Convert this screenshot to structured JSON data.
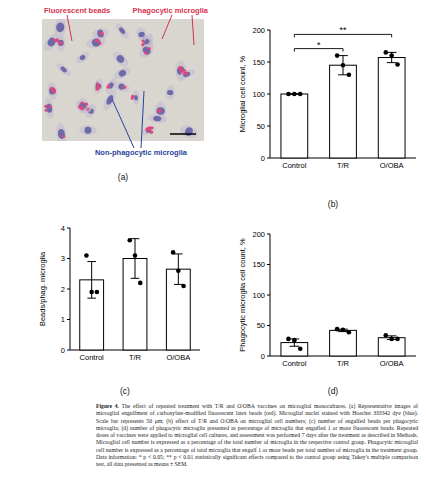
{
  "panel_a": {
    "label": "(a)",
    "annotations": [
      "Fluorescent beads",
      "Phagocytic microglia",
      "Non-phagocytic microglia"
    ]
  },
  "chart_data": [
    {
      "type": "bar",
      "title": "(b)",
      "y_label": "Microglial cell count, %",
      "categories": [
        "Control",
        "T/R",
        "O/OBA"
      ],
      "values": [
        100,
        145,
        157
      ],
      "errors": [
        0,
        15,
        8
      ],
      "points": [
        [
          100,
          100,
          100
        ],
        [
          160,
          145,
          130
        ],
        [
          165,
          160,
          146
        ]
      ],
      "color": "#ffffff",
      "ylim": [
        0,
        200
      ],
      "yticks": [
        0,
        50,
        100,
        150,
        200
      ],
      "significance": [
        {
          "from": "Control",
          "to": "T/R",
          "label": "*"
        },
        {
          "from": "Control",
          "to": "O/OBA",
          "label": "**"
        }
      ]
    },
    {
      "type": "bar",
      "title": "(c)",
      "y_label": "Beads/phag. microglia",
      "categories": [
        "Control",
        "T/R",
        "O/OBA"
      ],
      "values": [
        2.3,
        3.0,
        2.65
      ],
      "errors": [
        0.6,
        0.65,
        0.5
      ],
      "points": [
        [
          3.1,
          1.9,
          1.9
        ],
        [
          3.6,
          3.1,
          2.2
        ],
        [
          3.2,
          2.6,
          2.1
        ]
      ],
      "color": "#ffffff",
      "ylim": [
        0,
        4
      ],
      "yticks": [
        0,
        1,
        2,
        3,
        4
      ]
    },
    {
      "type": "bar",
      "title": "(d)",
      "y_label": "Phagocytic microglia cell count, %",
      "categories": [
        "Control",
        "T/R",
        "O/OBA"
      ],
      "values": [
        22,
        42,
        30
      ],
      "errors": [
        6,
        2,
        3
      ],
      "points": [
        [
          28,
          26,
          12
        ],
        [
          44,
          43,
          39
        ],
        [
          34,
          28,
          28
        ]
      ],
      "color": "#ffffff",
      "ylim": [
        0,
        200
      ],
      "yticks": [
        0,
        50,
        100,
        150,
        200
      ]
    }
  ],
  "caption": {
    "label": "Figure 4.",
    "text": "The effect of repeated treatment with T/R and O/OBA vaccines on microglial monocultures. (a) Representative images of microglial engulfment of carboxylate-modified fluorescent latex beads (red). Microglial nuclei stained with Hoechst 333342 dye (blue). Scale bar represents 50 μm; (b) effect of T/R and O/OBA on microglial cell numbers; (c) number of engulfed beads per phagocytic microglia; (d) number of phagocytic microglia presented as percentage of microglia that engulfed 1 or more fluorescent beads. Repeated doses of vaccines were applied to microglial cell cultures, and assessment was performed 7 days after the treatment as described in Methods. Microglial cell number is expressed as a percentage of the total number of microglia in the respective control group. Phagocytic microglial cell number is expressed as a percentage of total microglia that engulf 1 or more beads per total number of microglia in the treatment group. Data information: * p < 0.05; ** p < 0.01 statistically significant effects compared to the control group using Tukey's multiple comparison test, all data presented as means ± SEM."
  }
}
